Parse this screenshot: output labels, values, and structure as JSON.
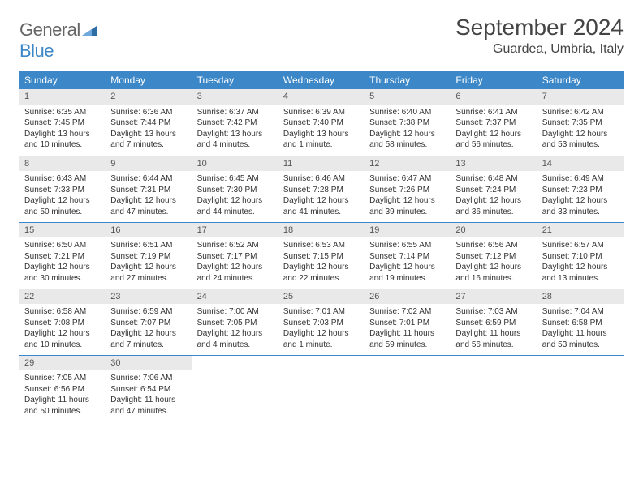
{
  "brand": {
    "part1": "General",
    "part2": "Blue"
  },
  "title": "September 2024",
  "location": "Guardea, Umbria, Italy",
  "colors": {
    "accent": "#3c87c7",
    "header_bg": "#e9e9e9",
    "text": "#333333"
  },
  "dayHeaders": [
    "Sunday",
    "Monday",
    "Tuesday",
    "Wednesday",
    "Thursday",
    "Friday",
    "Saturday"
  ],
  "weeks": [
    [
      {
        "n": "1",
        "sr": "Sunrise: 6:35 AM",
        "ss": "Sunset: 7:45 PM",
        "d1": "Daylight: 13 hours",
        "d2": "and 10 minutes."
      },
      {
        "n": "2",
        "sr": "Sunrise: 6:36 AM",
        "ss": "Sunset: 7:44 PM",
        "d1": "Daylight: 13 hours",
        "d2": "and 7 minutes."
      },
      {
        "n": "3",
        "sr": "Sunrise: 6:37 AM",
        "ss": "Sunset: 7:42 PM",
        "d1": "Daylight: 13 hours",
        "d2": "and 4 minutes."
      },
      {
        "n": "4",
        "sr": "Sunrise: 6:39 AM",
        "ss": "Sunset: 7:40 PM",
        "d1": "Daylight: 13 hours",
        "d2": "and 1 minute."
      },
      {
        "n": "5",
        "sr": "Sunrise: 6:40 AM",
        "ss": "Sunset: 7:38 PM",
        "d1": "Daylight: 12 hours",
        "d2": "and 58 minutes."
      },
      {
        "n": "6",
        "sr": "Sunrise: 6:41 AM",
        "ss": "Sunset: 7:37 PM",
        "d1": "Daylight: 12 hours",
        "d2": "and 56 minutes."
      },
      {
        "n": "7",
        "sr": "Sunrise: 6:42 AM",
        "ss": "Sunset: 7:35 PM",
        "d1": "Daylight: 12 hours",
        "d2": "and 53 minutes."
      }
    ],
    [
      {
        "n": "8",
        "sr": "Sunrise: 6:43 AM",
        "ss": "Sunset: 7:33 PM",
        "d1": "Daylight: 12 hours",
        "d2": "and 50 minutes."
      },
      {
        "n": "9",
        "sr": "Sunrise: 6:44 AM",
        "ss": "Sunset: 7:31 PM",
        "d1": "Daylight: 12 hours",
        "d2": "and 47 minutes."
      },
      {
        "n": "10",
        "sr": "Sunrise: 6:45 AM",
        "ss": "Sunset: 7:30 PM",
        "d1": "Daylight: 12 hours",
        "d2": "and 44 minutes."
      },
      {
        "n": "11",
        "sr": "Sunrise: 6:46 AM",
        "ss": "Sunset: 7:28 PM",
        "d1": "Daylight: 12 hours",
        "d2": "and 41 minutes."
      },
      {
        "n": "12",
        "sr": "Sunrise: 6:47 AM",
        "ss": "Sunset: 7:26 PM",
        "d1": "Daylight: 12 hours",
        "d2": "and 39 minutes."
      },
      {
        "n": "13",
        "sr": "Sunrise: 6:48 AM",
        "ss": "Sunset: 7:24 PM",
        "d1": "Daylight: 12 hours",
        "d2": "and 36 minutes."
      },
      {
        "n": "14",
        "sr": "Sunrise: 6:49 AM",
        "ss": "Sunset: 7:23 PM",
        "d1": "Daylight: 12 hours",
        "d2": "and 33 minutes."
      }
    ],
    [
      {
        "n": "15",
        "sr": "Sunrise: 6:50 AM",
        "ss": "Sunset: 7:21 PM",
        "d1": "Daylight: 12 hours",
        "d2": "and 30 minutes."
      },
      {
        "n": "16",
        "sr": "Sunrise: 6:51 AM",
        "ss": "Sunset: 7:19 PM",
        "d1": "Daylight: 12 hours",
        "d2": "and 27 minutes."
      },
      {
        "n": "17",
        "sr": "Sunrise: 6:52 AM",
        "ss": "Sunset: 7:17 PM",
        "d1": "Daylight: 12 hours",
        "d2": "and 24 minutes."
      },
      {
        "n": "18",
        "sr": "Sunrise: 6:53 AM",
        "ss": "Sunset: 7:15 PM",
        "d1": "Daylight: 12 hours",
        "d2": "and 22 minutes."
      },
      {
        "n": "19",
        "sr": "Sunrise: 6:55 AM",
        "ss": "Sunset: 7:14 PM",
        "d1": "Daylight: 12 hours",
        "d2": "and 19 minutes."
      },
      {
        "n": "20",
        "sr": "Sunrise: 6:56 AM",
        "ss": "Sunset: 7:12 PM",
        "d1": "Daylight: 12 hours",
        "d2": "and 16 minutes."
      },
      {
        "n": "21",
        "sr": "Sunrise: 6:57 AM",
        "ss": "Sunset: 7:10 PM",
        "d1": "Daylight: 12 hours",
        "d2": "and 13 minutes."
      }
    ],
    [
      {
        "n": "22",
        "sr": "Sunrise: 6:58 AM",
        "ss": "Sunset: 7:08 PM",
        "d1": "Daylight: 12 hours",
        "d2": "and 10 minutes."
      },
      {
        "n": "23",
        "sr": "Sunrise: 6:59 AM",
        "ss": "Sunset: 7:07 PM",
        "d1": "Daylight: 12 hours",
        "d2": "and 7 minutes."
      },
      {
        "n": "24",
        "sr": "Sunrise: 7:00 AM",
        "ss": "Sunset: 7:05 PM",
        "d1": "Daylight: 12 hours",
        "d2": "and 4 minutes."
      },
      {
        "n": "25",
        "sr": "Sunrise: 7:01 AM",
        "ss": "Sunset: 7:03 PM",
        "d1": "Daylight: 12 hours",
        "d2": "and 1 minute."
      },
      {
        "n": "26",
        "sr": "Sunrise: 7:02 AM",
        "ss": "Sunset: 7:01 PM",
        "d1": "Daylight: 11 hours",
        "d2": "and 59 minutes."
      },
      {
        "n": "27",
        "sr": "Sunrise: 7:03 AM",
        "ss": "Sunset: 6:59 PM",
        "d1": "Daylight: 11 hours",
        "d2": "and 56 minutes."
      },
      {
        "n": "28",
        "sr": "Sunrise: 7:04 AM",
        "ss": "Sunset: 6:58 PM",
        "d1": "Daylight: 11 hours",
        "d2": "and 53 minutes."
      }
    ],
    [
      {
        "n": "29",
        "sr": "Sunrise: 7:05 AM",
        "ss": "Sunset: 6:56 PM",
        "d1": "Daylight: 11 hours",
        "d2": "and 50 minutes."
      },
      {
        "n": "30",
        "sr": "Sunrise: 7:06 AM",
        "ss": "Sunset: 6:54 PM",
        "d1": "Daylight: 11 hours",
        "d2": "and 47 minutes."
      },
      null,
      null,
      null,
      null,
      null
    ]
  ]
}
